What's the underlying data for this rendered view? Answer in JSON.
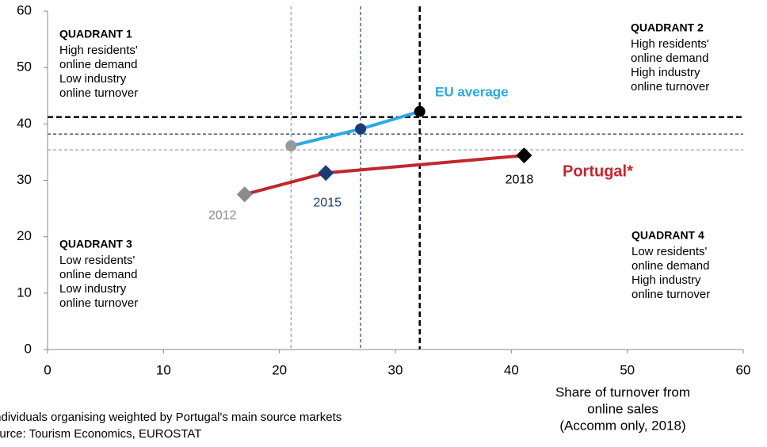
{
  "chart_data": {
    "type": "line",
    "xlim": [
      0,
      60
    ],
    "ylim": [
      0,
      60
    ],
    "xticks": [
      0,
      10,
      20,
      30,
      40,
      50,
      60
    ],
    "yticks": [
      0,
      10,
      20,
      30,
      40,
      50,
      60
    ],
    "xlabel": [
      "Share of turnover from",
      "online sales",
      "(Accomm only, 2018)"
    ],
    "series": [
      {
        "name": "EU average",
        "color": "#29aae1",
        "x": [
          21.0,
          27.0,
          32.1
        ],
        "values": [
          36.1,
          39.1,
          42.2
        ],
        "marker": "circle",
        "point_colors": [
          "#999999",
          "#1f3b73",
          "#000000"
        ]
      },
      {
        "name": "Portugal*",
        "color": "#c0282d",
        "x": [
          17.0,
          24.0,
          41.1
        ],
        "values": [
          27.5,
          31.3,
          34.4
        ],
        "marker": "diamond",
        "point_colors": [
          "#8c8c8c",
          "#1f3b73",
          "#000000"
        ],
        "point_labels": [
          "2012",
          "2015",
          "2018"
        ],
        "point_label_colors": [
          "#8c8c8c",
          "#1f3b73",
          "#000000"
        ]
      }
    ],
    "reference_lines": [
      {
        "axis": "x",
        "value": 21.0,
        "color": "#999999",
        "width": 1.2
      },
      {
        "axis": "x",
        "value": 27.0,
        "color": "#1f3b73",
        "width": 1.2
      },
      {
        "axis": "x",
        "value": 32.1,
        "color": "#000000",
        "width": 2.5
      },
      {
        "axis": "y",
        "value": 41.2,
        "color": "#000000",
        "width": 2.5
      },
      {
        "axis": "y",
        "value": 38.2,
        "color": "#1f3b73",
        "width": 1.2
      },
      {
        "axis": "y",
        "value": 35.4,
        "color": "#999999",
        "width": 1.2
      }
    ],
    "quadrants": [
      {
        "title": "QUADRANT 1",
        "lines": [
          "High residents'",
          "online demand",
          "Low industry",
          "online turnover"
        ]
      },
      {
        "title": "QUADRANT 2",
        "lines": [
          "High residents'",
          "online demand",
          "High industry",
          "online turnover"
        ]
      },
      {
        "title": "QUADRANT 3",
        "lines": [
          "Low residents'",
          "online demand",
          "Low industry",
          "online turnover"
        ]
      },
      {
        "title": "QUADRANT 4",
        "lines": [
          "Low residents'",
          "online demand",
          "High industry",
          "online turnover"
        ]
      }
    ],
    "footnotes": [
      "Individuals organising weighted by Portugal's main source markets",
      "Source: Tourism Economics, EUROSTAT"
    ]
  }
}
